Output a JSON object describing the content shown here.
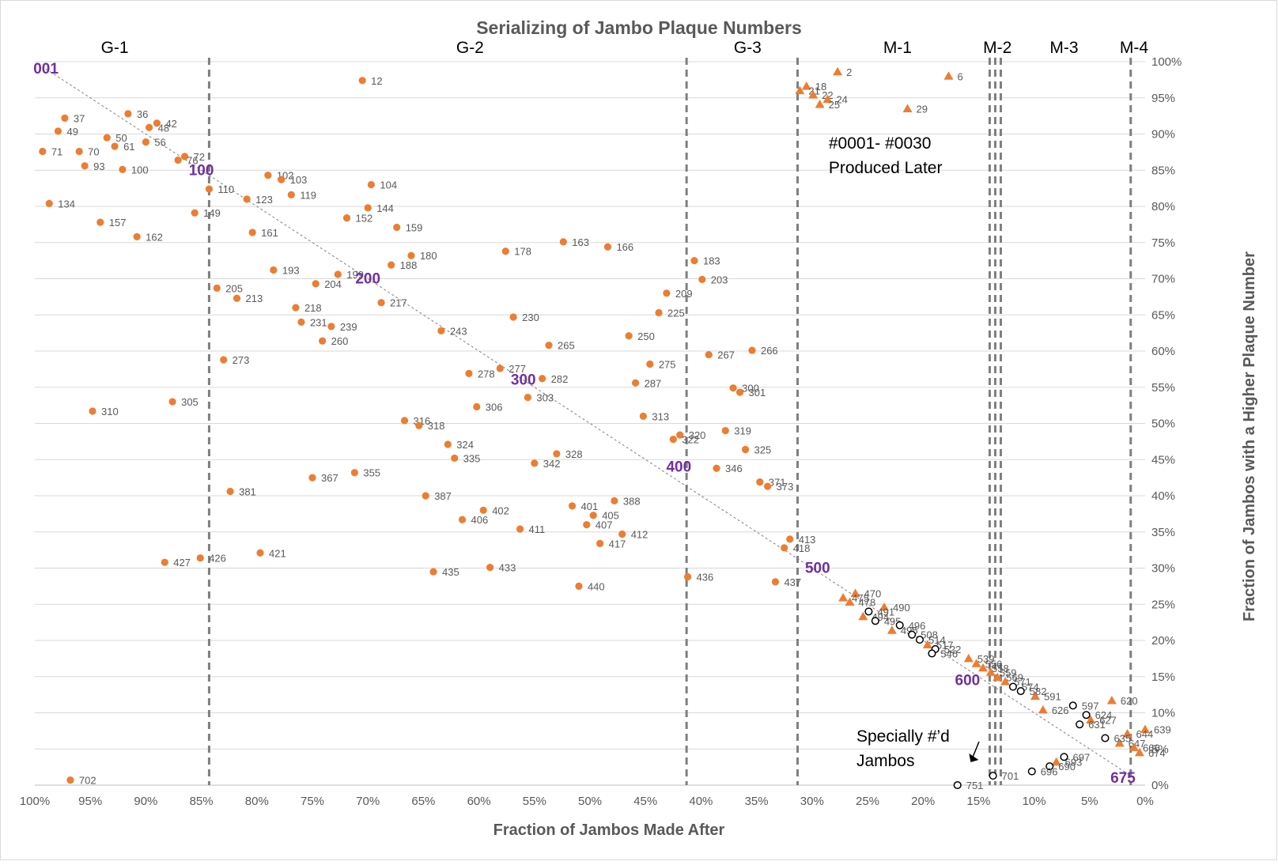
{
  "colors": {
    "orange": "#ed7d31",
    "grid": "#d9d9d9",
    "dash": "#7f7f7f",
    "purple": "#7030a0",
    "text": "#595959"
  },
  "chart_data": {
    "type": "scatter",
    "title": "Serializing of Jambo Plaque Numbers",
    "xlabel": "Fraction of Jambos Made After",
    "ylabel": "Fraction of Jambos with a Higher Plaque Number",
    "xlim": [
      100,
      0
    ],
    "ylim": [
      0,
      100
    ],
    "x_reversed": true,
    "grid": "horizontal",
    "x_ticks": [
      "100%",
      "95%",
      "90%",
      "85%",
      "80%",
      "75%",
      "70%",
      "65%",
      "60%",
      "55%",
      "50%",
      "45%",
      "40%",
      "35%",
      "30%",
      "25%",
      "20%",
      "15%",
      "10%",
      "5%",
      "0%"
    ],
    "y_ticks": [
      "0%",
      "5%",
      "10%",
      "15%",
      "20%",
      "25%",
      "30%",
      "35%",
      "40%",
      "45%",
      "50%",
      "55%",
      "60%",
      "65%",
      "70%",
      "75%",
      "80%",
      "85%",
      "90%",
      "95%",
      "100%"
    ],
    "group_boundaries": [
      84.3,
      41.3,
      31.3,
      14.0,
      13.5,
      13.0,
      1.3
    ],
    "groups": [
      {
        "label": "G-1",
        "x": 92.8
      },
      {
        "label": "G-2",
        "x": 60.8
      },
      {
        "label": "G-3",
        "x": 35.8
      },
      {
        "label": "M-1",
        "x": 22.3
      },
      {
        "label": "M-2",
        "x": 13.3
      },
      {
        "label": "M-3",
        "x": 7.3
      },
      {
        "label": "M-4",
        "x": 1.0
      }
    ],
    "serial_markers": [
      {
        "text": "001",
        "x": 99.0,
        "y": 99.0
      },
      {
        "text": "100",
        "x": 85.0,
        "y": 85.0
      },
      {
        "text": "200",
        "x": 70.0,
        "y": 70.0
      },
      {
        "text": "300",
        "x": 56.0,
        "y": 56.0
      },
      {
        "text": "400",
        "x": 42.0,
        "y": 44.0
      },
      {
        "text": "500",
        "x": 29.5,
        "y": 30.0
      },
      {
        "text": "600",
        "x": 16.0,
        "y": 14.5
      },
      {
        "text": "675",
        "x": 2.0,
        "y": 1.0
      }
    ],
    "annotations": [
      {
        "lines": [
          "#0001- #0030",
          "Produced Later"
        ],
        "x": 28.5,
        "y": 88.0
      },
      {
        "lines": [
          "Specially #’d",
          "Jambos"
        ],
        "x": 26.0,
        "y": 6.0
      }
    ],
    "series": [
      {
        "name": "",
        "marker": "circle-filled",
        "points": [
          {
            "x": 70.5,
            "y": 97.4,
            "label": "12"
          },
          {
            "x": 97.3,
            "y": 92.2,
            "label": "37"
          },
          {
            "x": 91.6,
            "y": 92.8,
            "label": "36"
          },
          {
            "x": 89.0,
            "y": 91.5,
            "label": "42"
          },
          {
            "x": 97.9,
            "y": 90.4,
            "label": "49"
          },
          {
            "x": 89.7,
            "y": 90.9,
            "label": "48"
          },
          {
            "x": 93.5,
            "y": 89.5,
            "label": "50"
          },
          {
            "x": 90.0,
            "y": 88.9,
            "label": "56"
          },
          {
            "x": 92.8,
            "y": 88.3,
            "label": "61"
          },
          {
            "x": 99.3,
            "y": 87.6,
            "label": "71"
          },
          {
            "x": 96.0,
            "y": 87.6,
            "label": "70"
          },
          {
            "x": 86.5,
            "y": 86.9,
            "label": "72"
          },
          {
            "x": 87.1,
            "y": 86.4,
            "label": "76"
          },
          {
            "x": 95.5,
            "y": 85.6,
            "label": "93"
          },
          {
            "x": 92.1,
            "y": 85.1,
            "label": "100"
          },
          {
            "x": 79.0,
            "y": 84.3,
            "label": "102"
          },
          {
            "x": 77.8,
            "y": 83.7,
            "label": "103"
          },
          {
            "x": 69.7,
            "y": 83.0,
            "label": "104"
          },
          {
            "x": 84.3,
            "y": 82.4,
            "label": "110"
          },
          {
            "x": 76.9,
            "y": 81.6,
            "label": "119"
          },
          {
            "x": 80.9,
            "y": 81.0,
            "label": "123"
          },
          {
            "x": 98.7,
            "y": 80.4,
            "label": "134"
          },
          {
            "x": 70.0,
            "y": 79.8,
            "label": "144"
          },
          {
            "x": 85.6,
            "y": 79.1,
            "label": "149"
          },
          {
            "x": 71.9,
            "y": 78.4,
            "label": "152"
          },
          {
            "x": 94.1,
            "y": 77.8,
            "label": "157"
          },
          {
            "x": 67.4,
            "y": 77.1,
            "label": "159"
          },
          {
            "x": 80.4,
            "y": 76.4,
            "label": "161"
          },
          {
            "x": 90.8,
            "y": 75.8,
            "label": "162"
          },
          {
            "x": 52.4,
            "y": 75.1,
            "label": "163"
          },
          {
            "x": 48.4,
            "y": 74.4,
            "label": "166"
          },
          {
            "x": 57.6,
            "y": 73.8,
            "label": "178"
          },
          {
            "x": 66.1,
            "y": 73.2,
            "label": "180"
          },
          {
            "x": 40.6,
            "y": 72.5,
            "label": "183"
          },
          {
            "x": 67.9,
            "y": 71.9,
            "label": "188"
          },
          {
            "x": 78.5,
            "y": 71.2,
            "label": "193"
          },
          {
            "x": 72.7,
            "y": 70.6,
            "label": "199"
          },
          {
            "x": 39.9,
            "y": 69.9,
            "label": "203"
          },
          {
            "x": 74.7,
            "y": 69.3,
            "label": "204"
          },
          {
            "x": 83.6,
            "y": 68.7,
            "label": "205"
          },
          {
            "x": 43.1,
            "y": 68.0,
            "label": "209"
          },
          {
            "x": 81.8,
            "y": 67.3,
            "label": "213"
          },
          {
            "x": 68.8,
            "y": 66.7,
            "label": "217"
          },
          {
            "x": 76.5,
            "y": 66.0,
            "label": "218"
          },
          {
            "x": 43.8,
            "y": 65.3,
            "label": "225"
          },
          {
            "x": 56.9,
            "y": 64.7,
            "label": "230"
          },
          {
            "x": 76.0,
            "y": 64.0,
            "label": "231"
          },
          {
            "x": 73.3,
            "y": 63.4,
            "label": "239"
          },
          {
            "x": 63.4,
            "y": 62.8,
            "label": "243"
          },
          {
            "x": 46.5,
            "y": 62.1,
            "label": "250"
          },
          {
            "x": 74.1,
            "y": 61.4,
            "label": "260"
          },
          {
            "x": 53.7,
            "y": 60.8,
            "label": "265"
          },
          {
            "x": 35.4,
            "y": 60.1,
            "label": "266"
          },
          {
            "x": 39.3,
            "y": 59.5,
            "label": "267"
          },
          {
            "x": 83.0,
            "y": 58.8,
            "label": "273"
          },
          {
            "x": 44.6,
            "y": 58.2,
            "label": "275"
          },
          {
            "x": 58.1,
            "y": 57.6,
            "label": "277"
          },
          {
            "x": 60.9,
            "y": 56.9,
            "label": "278"
          },
          {
            "x": 54.3,
            "y": 56.2,
            "label": "282"
          },
          {
            "x": 45.9,
            "y": 55.6,
            "label": "287"
          },
          {
            "x": 37.1,
            "y": 54.9,
            "label": "300"
          },
          {
            "x": 36.5,
            "y": 54.3,
            "label": "301"
          },
          {
            "x": 55.6,
            "y": 53.6,
            "label": "303"
          },
          {
            "x": 87.6,
            "y": 53.0,
            "label": "305"
          },
          {
            "x": 60.2,
            "y": 52.3,
            "label": "306"
          },
          {
            "x": 94.8,
            "y": 51.7,
            "label": "310"
          },
          {
            "x": 45.2,
            "y": 51.0,
            "label": "313"
          },
          {
            "x": 66.7,
            "y": 50.4,
            "label": "316"
          },
          {
            "x": 65.4,
            "y": 49.7,
            "label": "318"
          },
          {
            "x": 37.8,
            "y": 49.0,
            "label": "319"
          },
          {
            "x": 41.9,
            "y": 48.4,
            "label": "320"
          },
          {
            "x": 42.5,
            "y": 47.8,
            "label": "322"
          },
          {
            "x": 62.8,
            "y": 47.1,
            "label": "324"
          },
          {
            "x": 36.0,
            "y": 46.4,
            "label": "325"
          },
          {
            "x": 53.0,
            "y": 45.8,
            "label": "328"
          },
          {
            "x": 62.2,
            "y": 45.2,
            "label": "335"
          },
          {
            "x": 55.0,
            "y": 44.5,
            "label": "342"
          },
          {
            "x": 38.6,
            "y": 43.8,
            "label": "346"
          },
          {
            "x": 71.2,
            "y": 43.2,
            "label": "355"
          },
          {
            "x": 75.0,
            "y": 42.5,
            "label": "367"
          },
          {
            "x": 34.7,
            "y": 41.9,
            "label": "371"
          },
          {
            "x": 34.0,
            "y": 41.3,
            "label": "373"
          },
          {
            "x": 82.4,
            "y": 40.6,
            "label": "381"
          },
          {
            "x": 64.8,
            "y": 40.0,
            "label": "387"
          },
          {
            "x": 47.8,
            "y": 39.3,
            "label": "388"
          },
          {
            "x": 51.6,
            "y": 38.6,
            "label": "401"
          },
          {
            "x": 59.6,
            "y": 38.0,
            "label": "402"
          },
          {
            "x": 49.7,
            "y": 37.3,
            "label": "405"
          },
          {
            "x": 61.5,
            "y": 36.7,
            "label": "406"
          },
          {
            "x": 50.3,
            "y": 36.0,
            "label": "407"
          },
          {
            "x": 56.3,
            "y": 35.4,
            "label": "411"
          },
          {
            "x": 47.1,
            "y": 34.7,
            "label": "412"
          },
          {
            "x": 32.0,
            "y": 34.0,
            "label": "413"
          },
          {
            "x": 49.1,
            "y": 33.4,
            "label": "417"
          },
          {
            "x": 32.5,
            "y": 32.8,
            "label": "418"
          },
          {
            "x": 79.7,
            "y": 32.1,
            "label": "421"
          },
          {
            "x": 85.1,
            "y": 31.4,
            "label": "426"
          },
          {
            "x": 88.3,
            "y": 30.8,
            "label": "427"
          },
          {
            "x": 59.0,
            "y": 30.1,
            "label": "433"
          },
          {
            "x": 64.1,
            "y": 29.5,
            "label": "435"
          },
          {
            "x": 41.2,
            "y": 28.8,
            "label": "436"
          },
          {
            "x": 33.3,
            "y": 28.1,
            "label": "437"
          },
          {
            "x": 51.0,
            "y": 27.5,
            "label": "440"
          },
          {
            "x": 96.8,
            "y": 0.7,
            "label": "702"
          }
        ]
      },
      {
        "name": "",
        "marker": "triangle-filled",
        "points": [
          {
            "x": 27.7,
            "y": 98.6,
            "label": "2"
          },
          {
            "x": 17.7,
            "y": 98.0,
            "label": "6"
          },
          {
            "x": 30.5,
            "y": 96.6,
            "label": "18"
          },
          {
            "x": 31.1,
            "y": 96.0,
            "label": "21"
          },
          {
            "x": 29.9,
            "y": 95.4,
            "label": "22"
          },
          {
            "x": 28.6,
            "y": 94.8,
            "label": "24"
          },
          {
            "x": 29.3,
            "y": 94.1,
            "label": "25"
          },
          {
            "x": 21.4,
            "y": 93.5,
            "label": "29"
          },
          {
            "x": 26.1,
            "y": 26.5,
            "label": "470"
          },
          {
            "x": 27.2,
            "y": 25.9,
            "label": "475"
          },
          {
            "x": 26.6,
            "y": 25.3,
            "label": "478"
          },
          {
            "x": 23.5,
            "y": 24.6,
            "label": "490"
          },
          {
            "x": 25.4,
            "y": 23.3,
            "label": "494"
          },
          {
            "x": 22.8,
            "y": 21.4,
            "label": "495"
          },
          {
            "x": 19.6,
            "y": 19.4,
            "label": "517"
          },
          {
            "x": 15.9,
            "y": 17.5,
            "label": "539"
          },
          {
            "x": 15.2,
            "y": 16.8,
            "label": "556"
          },
          {
            "x": 14.6,
            "y": 16.2,
            "label": "558"
          },
          {
            "x": 13.9,
            "y": 15.6,
            "label": "559"
          },
          {
            "x": 13.3,
            "y": 14.9,
            "label": "569"
          },
          {
            "x": 12.6,
            "y": 14.3,
            "label": "571"
          },
          {
            "x": 9.9,
            "y": 12.3,
            "label": "591"
          },
          {
            "x": 9.2,
            "y": 10.4,
            "label": "626"
          },
          {
            "x": 3.0,
            "y": 11.7,
            "label": "620"
          },
          {
            "x": 4.9,
            "y": 9.0,
            "label": "627"
          },
          {
            "x": 0.0,
            "y": 7.7,
            "label": "639"
          },
          {
            "x": 1.6,
            "y": 7.1,
            "label": "644"
          },
          {
            "x": 2.3,
            "y": 5.8,
            "label": "647"
          },
          {
            "x": 1.0,
            "y": 5.2,
            "label": "666"
          },
          {
            "x": 0.5,
            "y": 4.5,
            "label": "674"
          },
          {
            "x": 8.0,
            "y": 3.2,
            "label": "693"
          }
        ]
      },
      {
        "name": "",
        "marker": "circle-open",
        "points": [
          {
            "x": 24.9,
            "y": 24.0,
            "label": "491"
          },
          {
            "x": 24.3,
            "y": 22.7,
            "label": "495"
          },
          {
            "x": 22.1,
            "y": 22.1,
            "label": "496"
          },
          {
            "x": 21.0,
            "y": 20.8,
            "label": "508"
          },
          {
            "x": 20.3,
            "y": 20.1,
            "label": "514"
          },
          {
            "x": 18.9,
            "y": 18.8,
            "label": "522"
          },
          {
            "x": 19.2,
            "y": 18.2,
            "label": "546"
          },
          {
            "x": 11.9,
            "y": 13.6,
            "label": "574"
          },
          {
            "x": 11.2,
            "y": 13.0,
            "label": "582"
          },
          {
            "x": 6.5,
            "y": 11.0,
            "label": "597"
          },
          {
            "x": 5.3,
            "y": 9.7,
            "label": "624"
          },
          {
            "x": 5.9,
            "y": 8.4,
            "label": "631"
          },
          {
            "x": 3.6,
            "y": 6.5,
            "label": "635"
          },
          {
            "x": 7.3,
            "y": 3.9,
            "label": "697"
          },
          {
            "x": 8.6,
            "y": 2.6,
            "label": "690"
          },
          {
            "x": 10.2,
            "y": 1.9,
            "label": "696"
          },
          {
            "x": 13.7,
            "y": 1.3,
            "label": "701"
          },
          {
            "x": 16.9,
            "y": 0.0,
            "label": "751"
          }
        ]
      }
    ]
  }
}
